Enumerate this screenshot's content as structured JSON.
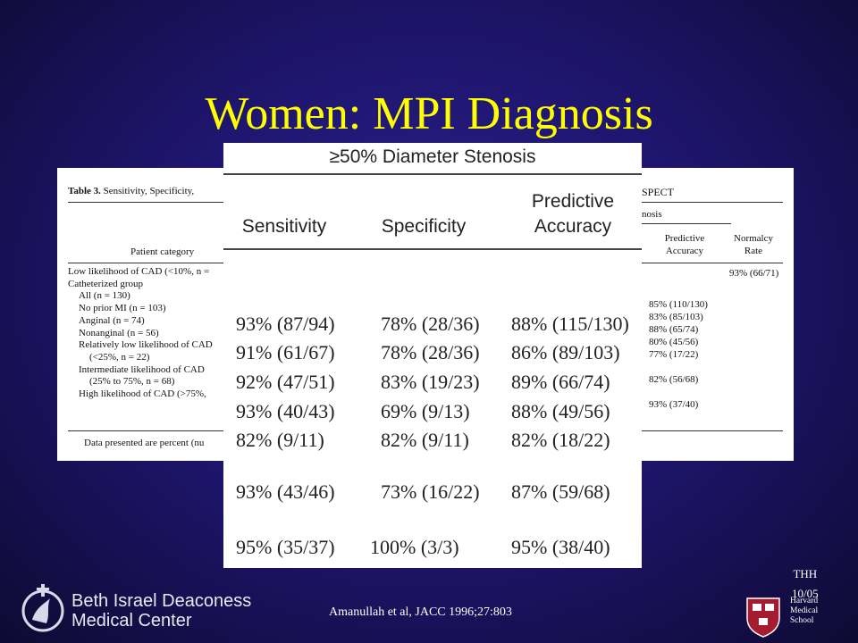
{
  "slide": {
    "title": "Women: MPI Diagnosis",
    "citation": "Amanullah et al, JACC 1996;27:803",
    "initials": "THH",
    "date": "10/05",
    "institution": [
      "Beth Israel Deaconess",
      "Medical Center"
    ],
    "school": [
      "Harvard",
      "Medical",
      "School"
    ],
    "colors": {
      "title": "#ffff00",
      "background": "#1f1670"
    }
  },
  "background_table": {
    "caption_bold": "Table 3.",
    "caption_rest": "Sensitivity, Specificity,",
    "right_caption": "SPECT",
    "right_sub": "nosis",
    "patient_category_header": "Patient category",
    "rows": [
      "Low likelihood of CAD (<10%, n =",
      "Catheterized group",
      "All (n = 130)",
      "No prior MI (n = 103)",
      "Anginal (n = 74)",
      "Nonanginal (n = 56)",
      "Relatively low likelihood of CAD",
      "(<25%, n = 22)",
      "Intermediate likelihood of CAD",
      "(25% to 75%, n = 68)",
      "High likelihood of CAD (>75%,"
    ],
    "footer": "Data presented are percent (nu",
    "pa_header": [
      "Predictive",
      "Accuracy"
    ],
    "nr_header": [
      "Normalcy",
      "Rate"
    ],
    "normalcy_value": "93% (66/71)",
    "pa_values": [
      "85% (110/130)",
      "83% (85/103)",
      "88% (65/74)",
      "80% (45/56)",
      "77% (17/22)",
      "",
      "82% (56/68)",
      "",
      "93% (37/40)"
    ]
  },
  "zoom_table": {
    "title": "≥50% Diameter Stenosis",
    "headers": {
      "sensitivity": "Sensitivity",
      "specificity": "Specificity",
      "pa1": "Predictive",
      "pa2": "Accuracy"
    },
    "rows": [
      [
        "93% (87/94)",
        "78% (28/36)",
        "88% (115/130)"
      ],
      [
        "91% (61/67)",
        "78% (28/36)",
        "86% (89/103)"
      ],
      [
        "92% (47/51)",
        "83% (19/23)",
        "89% (66/74)"
      ],
      [
        "93% (40/43)",
        "69% (9/13)",
        "88% (49/56)"
      ],
      [
        "82% (9/11)",
        "82% (9/11)",
        "82% (18/22)"
      ],
      [
        "93% (43/46)",
        "73% (16/22)",
        "87% (59/68)"
      ],
      [
        "95% (35/37)",
        "100% (3/3)",
        "95% (38/40)"
      ]
    ]
  }
}
